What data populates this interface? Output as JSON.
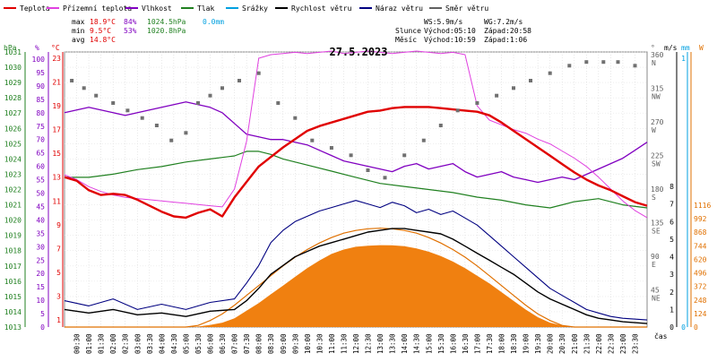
{
  "chart_data": {
    "type": "line",
    "title": "27.5.2023",
    "legend": [
      {
        "name": "Teplota",
        "color": "#e00000"
      },
      {
        "name": "Přízemní teplota",
        "color": "#e040e0"
      },
      {
        "name": "Vlhkost",
        "color": "#8000c0"
      },
      {
        "name": "Tlak",
        "color": "#208020"
      },
      {
        "name": "Srážky",
        "color": "#00a0e0"
      },
      {
        "name": "Rychlost větru",
        "color": "#000000"
      },
      {
        "name": "Náraz větru",
        "color": "#000080"
      },
      {
        "name": "Směr větru",
        "color": "#606060"
      }
    ],
    "stats": {
      "max": {
        "label": "max",
        "temp": "18.9°C",
        "hum": "84%",
        "press": "1024.5hPa",
        "rain": "0.0mm"
      },
      "min": {
        "label": "min",
        "temp": "9.5°C",
        "hum": "53%",
        "press": "1020.8hPa"
      },
      "avg": {
        "label": "avg",
        "temp": "14.8°C"
      }
    },
    "wind_info": {
      "ws": "WS:5.9m/s",
      "wg": "WG:7.2m/s"
    },
    "sun_info": {
      "label": "Slunce",
      "rise": "Východ:05:10",
      "set": "Západ:20:58"
    },
    "moon_info": {
      "label": "Měsíc",
      "rise": "Východ:10:59",
      "set": "Západ:1:06"
    },
    "axes": {
      "hpa": {
        "label": "hPa",
        "ticks": [
          "1013",
          "1014",
          "1015",
          "1016",
          "1017",
          "1018",
          "1019",
          "1020",
          "1021",
          "1022",
          "1023",
          "1024",
          "1025",
          "1026",
          "1027",
          "1028",
          "1029",
          "1030",
          "1031"
        ]
      },
      "pct": {
        "label": "%",
        "ticks": [
          "0",
          "5",
          "10",
          "15",
          "20",
          "25",
          "30",
          "35",
          "40",
          "45",
          "50",
          "55",
          "60",
          "65",
          "70",
          "75",
          "80",
          "85",
          "90",
          "95",
          "100"
        ]
      },
      "temp": {
        "label": "°C",
        "ticks": [
          "1",
          "3",
          "5",
          "7",
          "9",
          "11",
          "13",
          "15",
          "17",
          "19",
          "21",
          "23"
        ]
      },
      "dir": {
        "label": "°",
        "ticks": [
          {
            "deg": "360",
            "dir": "N"
          },
          {
            "deg": "315",
            "dir": "NW"
          },
          {
            "deg": "270",
            "dir": "W"
          },
          {
            "deg": "225",
            "dir": "SW"
          },
          {
            "deg": "180",
            "dir": "S"
          },
          {
            "deg": "135",
            "dir": "SE"
          },
          {
            "deg": "90",
            "dir": "E"
          },
          {
            "deg": "45",
            "dir": "NE"
          }
        ]
      },
      "ms": {
        "label": "m/s",
        "ticks": [
          "0",
          "1",
          "2",
          "3",
          "4",
          "5",
          "6",
          "7",
          "8"
        ]
      },
      "mm": {
        "label": "mm",
        "ticks": [
          "0",
          "1"
        ]
      },
      "w": {
        "label": "W",
        "ticks": [
          "0",
          "124",
          "248",
          "372",
          "496",
          "620",
          "744",
          "868",
          "992",
          "1116"
        ]
      },
      "time_label": "čas",
      "time_ticks": [
        "00:30",
        "01:00",
        "01:30",
        "02:00",
        "02:30",
        "03:00",
        "03:30",
        "04:00",
        "04:30",
        "05:00",
        "05:30",
        "06:00",
        "06:30",
        "07:00",
        "07:30",
        "08:00",
        "08:30",
        "09:00",
        "09:30",
        "10:00",
        "10:30",
        "11:00",
        "11:30",
        "12:00",
        "12:30",
        "13:00",
        "13:30",
        "14:00",
        "14:30",
        "15:00",
        "15:30",
        "16:00",
        "16:30",
        "17:00",
        "17:30",
        "18:00",
        "18:30",
        "19:00",
        "19:30",
        "20:00",
        "20:30",
        "21:00",
        "21:30",
        "22:00",
        "22:30",
        "23:00",
        "23:30"
      ]
    },
    "series": {
      "temperature": {
        "x": [
          0,
          0.5,
          1,
          1.5,
          2,
          2.5,
          3,
          3.5,
          4,
          4.5,
          5,
          5.5,
          6,
          6.5,
          7,
          7.5,
          8,
          8.5,
          9,
          9.5,
          10,
          10.5,
          11,
          11.5,
          12,
          12.5,
          13,
          13.5,
          14,
          14.5,
          15,
          15.5,
          16,
          16.5,
          17,
          17.5,
          18,
          18.5,
          19,
          19.5,
          20,
          20.5,
          21,
          21.5,
          22,
          22.5,
          23,
          23.5,
          24
        ],
        "y": [
          13.0,
          12.7,
          11.9,
          11.5,
          11.6,
          11.5,
          11.1,
          10.6,
          10.1,
          9.7,
          9.6,
          10.0,
          10.3,
          9.7,
          11.3,
          12.6,
          13.9,
          14.7,
          15.5,
          16.2,
          16.9,
          17.3,
          17.6,
          17.9,
          18.2,
          18.5,
          18.6,
          18.8,
          18.9,
          18.9,
          18.9,
          18.8,
          18.7,
          18.6,
          18.5,
          18.2,
          17.6,
          16.9,
          16.2,
          15.5,
          14.8,
          14.1,
          13.4,
          12.8,
          12.3,
          11.9,
          11.4,
          10.9,
          10.6
        ]
      },
      "ground_temperature": {
        "x": [
          0,
          0.5,
          1,
          1.5,
          2,
          2.5,
          3,
          3.5,
          4,
          4.5,
          5,
          5.5,
          6,
          6.5,
          7,
          7.5,
          8,
          8.5,
          9,
          9.5,
          10,
          10.5,
          11,
          11.5,
          12,
          12.5,
          13,
          13.5,
          14,
          14.5,
          15,
          15.5,
          16,
          16.5,
          17,
          17.5,
          18,
          18.5,
          19,
          19.5,
          20,
          20.5,
          21,
          21.5,
          22,
          22.5,
          23,
          23.5,
          24
        ],
        "y": [
          13.2,
          12.8,
          12.2,
          11.8,
          11.5,
          11.3,
          11.2,
          11.1,
          11.0,
          10.9,
          10.8,
          10.7,
          10.6,
          10.5,
          12.0,
          16.0,
          23.0,
          23.3,
          23.4,
          23.5,
          23.4,
          23.5,
          23.6,
          23.4,
          23.5,
          23.6,
          23.5,
          23.4,
          23.5,
          23.6,
          23.5,
          23.4,
          23.5,
          23.3,
          19.0,
          17.8,
          17.4,
          17.0,
          16.7,
          16.2,
          15.8,
          15.2,
          14.6,
          13.9,
          13.0,
          12.0,
          11.0,
          10.2,
          9.6
        ]
      },
      "humidity": {
        "x": [
          0,
          0.5,
          1,
          1.5,
          2,
          2.5,
          3,
          3.5,
          4,
          4.5,
          5,
          5.5,
          6,
          6.5,
          7,
          7.5,
          8,
          8.5,
          9,
          9.5,
          10,
          10.5,
          11,
          11.5,
          12,
          12.5,
          13,
          13.5,
          14,
          14.5,
          15,
          15.5,
          16,
          16.5,
          17,
          17.5,
          18,
          18.5,
          19,
          19.5,
          20,
          20.5,
          21,
          21.5,
          22,
          22.5,
          23,
          23.5,
          24
        ],
        "y": [
          80,
          81,
          82,
          81,
          80,
          79,
          80,
          81,
          82,
          83,
          84,
          83,
          82,
          80,
          76,
          72,
          71,
          70,
          70,
          69,
          68,
          66,
          64,
          62,
          61,
          60,
          59,
          58,
          60,
          61,
          59,
          60,
          61,
          58,
          56,
          57,
          58,
          56,
          55,
          54,
          55,
          56,
          55,
          57,
          59,
          61,
          63,
          66,
          69
        ]
      },
      "pressure": {
        "x": [
          0,
          1,
          2,
          3,
          4,
          5,
          6,
          7,
          7.5,
          8,
          8.5,
          9,
          10,
          11,
          12,
          13,
          14,
          15,
          16,
          17,
          18,
          19,
          20,
          21,
          22,
          23,
          24
        ],
        "y": [
          1022.8,
          1022.8,
          1023.0,
          1023.3,
          1023.5,
          1023.8,
          1024.0,
          1024.2,
          1024.5,
          1024.5,
          1024.3,
          1024.0,
          1023.6,
          1023.2,
          1022.8,
          1022.4,
          1022.2,
          1022.0,
          1021.8,
          1021.5,
          1021.3,
          1021.0,
          1020.8,
          1021.2,
          1021.4,
          1021.0,
          1020.8
        ]
      },
      "wind_speed": {
        "x": [
          0,
          1,
          2,
          3,
          4,
          5,
          6,
          7,
          7.5,
          8,
          8.5,
          9,
          9.5,
          10,
          10.5,
          11,
          11.5,
          12,
          12.5,
          13,
          13.5,
          14,
          14.5,
          15,
          15.5,
          16,
          16.5,
          17,
          17.5,
          18,
          18.5,
          19,
          19.5,
          20,
          20.5,
          21,
          21.5,
          22,
          22.5,
          23,
          24
        ],
        "y": [
          1.0,
          0.8,
          1.0,
          0.7,
          0.8,
          0.6,
          0.9,
          1.0,
          1.5,
          2.2,
          3.0,
          3.5,
          4.0,
          4.3,
          4.6,
          4.8,
          5.0,
          5.2,
          5.4,
          5.5,
          5.6,
          5.6,
          5.5,
          5.4,
          5.3,
          5.0,
          4.6,
          4.2,
          3.8,
          3.4,
          3.0,
          2.5,
          2.0,
          1.6,
          1.3,
          1.0,
          0.7,
          0.5,
          0.4,
          0.3,
          0.2
        ]
      },
      "wind_gust": {
        "x": [
          0,
          1,
          2,
          3,
          4,
          5,
          6,
          7,
          7.5,
          8,
          8.5,
          9,
          9.5,
          10,
          10.5,
          11,
          11.5,
          12,
          12.5,
          13,
          13.5,
          14,
          14.5,
          15,
          15.5,
          16,
          16.5,
          17,
          17.5,
          18,
          18.5,
          19,
          19.5,
          20,
          20.5,
          21,
          21.5,
          22,
          22.5,
          23,
          24
        ],
        "y": [
          1.5,
          1.2,
          1.6,
          1.0,
          1.3,
          1.0,
          1.4,
          1.6,
          2.5,
          3.5,
          4.8,
          5.5,
          6.0,
          6.3,
          6.6,
          6.8,
          7.0,
          7.2,
          7.0,
          6.8,
          7.1,
          6.9,
          6.5,
          6.7,
          6.4,
          6.6,
          6.2,
          5.8,
          5.2,
          4.6,
          4.0,
          3.4,
          2.8,
          2.2,
          1.8,
          1.4,
          1.0,
          0.8,
          0.6,
          0.5,
          0.4
        ]
      },
      "solar_radiation": {
        "x": [
          0,
          5,
          5.5,
          6,
          6.5,
          7,
          7.5,
          8,
          8.5,
          9,
          9.5,
          10,
          10.5,
          11,
          11.5,
          12,
          12.5,
          13,
          13.5,
          14,
          14.5,
          15,
          15.5,
          16,
          16.5,
          17,
          17.5,
          18,
          18.5,
          19,
          19.5,
          20,
          20.5,
          21,
          24
        ],
        "y": [
          0,
          0,
          5,
          20,
          40,
          80,
          150,
          220,
          300,
          380,
          460,
          540,
          610,
          670,
          710,
          735,
          745,
          750,
          748,
          740,
          720,
          690,
          650,
          600,
          540,
          470,
          400,
          320,
          240,
          160,
          90,
          40,
          15,
          0,
          0
        ]
      },
      "clear_sky_radiation": {
        "x": [
          0,
          5,
          5.5,
          6,
          6.5,
          7,
          7.5,
          8,
          8.5,
          9,
          9.5,
          10,
          10.5,
          11,
          11.5,
          12,
          12.5,
          13,
          13.5,
          14,
          14.5,
          15,
          15.5,
          16,
          16.5,
          17,
          17.5,
          18,
          18.5,
          19,
          19.5,
          20,
          20.5,
          21,
          24
        ],
        "y": [
          0,
          0,
          15,
          60,
          120,
          200,
          290,
          380,
          470,
          560,
          640,
          710,
          770,
          820,
          860,
          885,
          900,
          905,
          900,
          885,
          860,
          820,
          770,
          710,
          640,
          560,
          470,
          380,
          290,
          200,
          120,
          60,
          15,
          0,
          0
        ]
      },
      "wind_direction": {
        "x": [
          0.3,
          0.8,
          1.3,
          2.0,
          2.6,
          3.2,
          3.8,
          4.4,
          5.0,
          5.5,
          6.0,
          6.5,
          7.2,
          8.0,
          8.8,
          9.5,
          10.2,
          11.0,
          11.8,
          12.5,
          13.2,
          14.0,
          14.8,
          15.5,
          16.2,
          17.0,
          17.8,
          18.5,
          19.2,
          20.0,
          20.8,
          21.5,
          22.2,
          22.8,
          23.5
        ],
        "y": [
          330,
          320,
          310,
          300,
          290,
          280,
          270,
          250,
          260,
          300,
          310,
          320,
          330,
          340,
          300,
          280,
          250,
          240,
          230,
          210,
          200,
          230,
          250,
          270,
          290,
          300,
          310,
          320,
          330,
          340,
          350,
          355,
          355,
          355,
          350
        ]
      }
    }
  }
}
